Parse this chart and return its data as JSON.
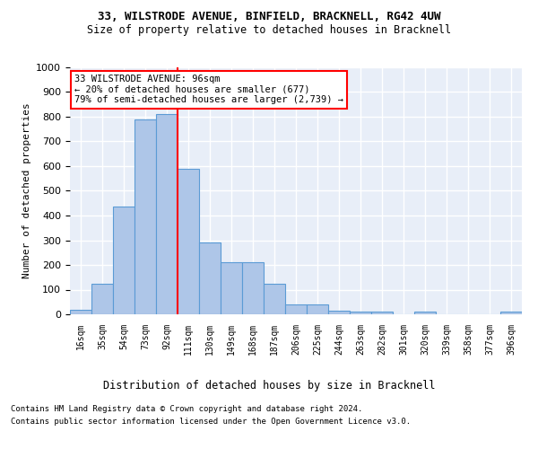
{
  "title1": "33, WILSTRODE AVENUE, BINFIELD, BRACKNELL, RG42 4UW",
  "title2": "Size of property relative to detached houses in Bracknell",
  "xlabel": "Distribution of detached houses by size in Bracknell",
  "ylabel": "Number of detached properties",
  "bar_labels": [
    "16sqm",
    "35sqm",
    "54sqm",
    "73sqm",
    "92sqm",
    "111sqm",
    "130sqm",
    "149sqm",
    "168sqm",
    "187sqm",
    "206sqm",
    "225sqm",
    "244sqm",
    "263sqm",
    "282sqm",
    "301sqm",
    "320sqm",
    "339sqm",
    "358sqm",
    "377sqm",
    "396sqm"
  ],
  "bar_values": [
    20,
    125,
    435,
    790,
    810,
    590,
    290,
    212,
    212,
    125,
    40,
    40,
    15,
    10,
    10,
    0,
    10,
    0,
    0,
    0,
    10
  ],
  "bar_color": "#aec6e8",
  "bar_edge_color": "#5b9bd5",
  "vline_color": "red",
  "annotation_text": "33 WILSTRODE AVENUE: 96sqm\n← 20% of detached houses are smaller (677)\n79% of semi-detached houses are larger (2,739) →",
  "ylim": [
    0,
    1000
  ],
  "yticks": [
    0,
    100,
    200,
    300,
    400,
    500,
    600,
    700,
    800,
    900,
    1000
  ],
  "footer1": "Contains HM Land Registry data © Crown copyright and database right 2024.",
  "footer2": "Contains public sector information licensed under the Open Government Licence v3.0.",
  "plot_bg_color": "#e8eef8"
}
